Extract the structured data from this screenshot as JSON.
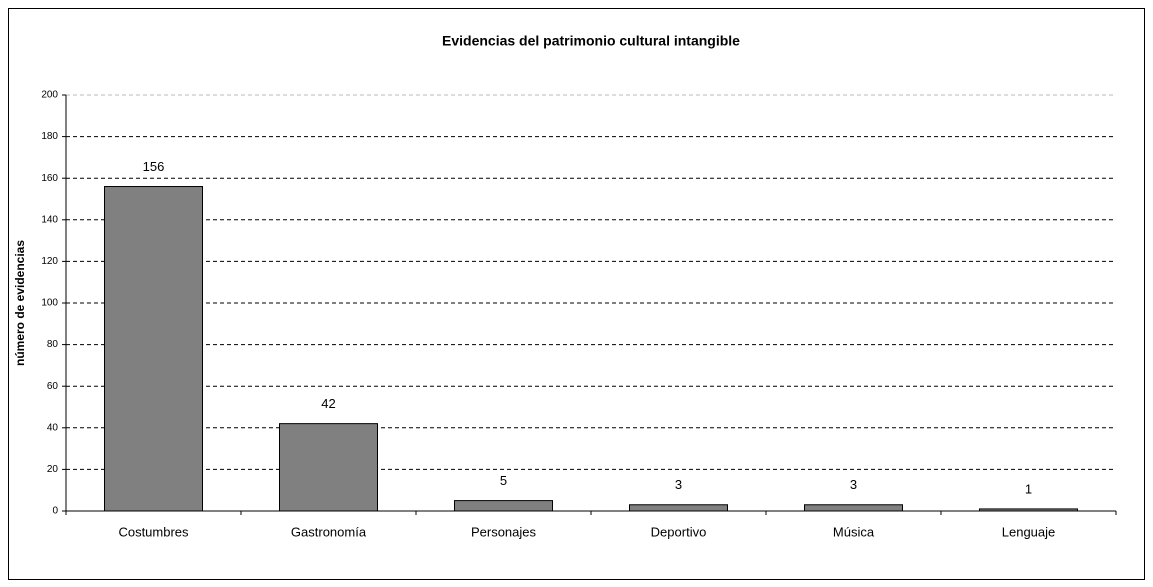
{
  "chart_data": {
    "type": "bar",
    "title": "Evidencias del patrimonio cultural intangible",
    "y_label": "número de evidencias",
    "categories": [
      "Costumbres",
      "Gastronomía",
      "Personajes",
      "Deportivo",
      "Música",
      "Lenguaje"
    ],
    "values": [
      156,
      42,
      5,
      3,
      3,
      1
    ],
    "color": "#808080",
    "ylim": [
      0,
      200
    ],
    "yticks": [
      0,
      20,
      40,
      60,
      80,
      100,
      120,
      140,
      160,
      180,
      200
    ],
    "grid": true
  }
}
